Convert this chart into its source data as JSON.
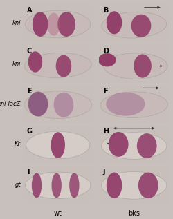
{
  "figsize": [
    2.5,
    3.17
  ],
  "dpi": 100,
  "background_color": "#c8c0bc",
  "panel_layout": {
    "rows": 5,
    "cols": 2,
    "panels": [
      "A",
      "B",
      "C",
      "D",
      "E",
      "F",
      "G",
      "H",
      "I",
      "J"
    ]
  },
  "row_labels": [
    "kni",
    "kni",
    "kni-lacZ",
    "Kr",
    "gt"
  ],
  "row_label_italic": true,
  "col_labels": [
    "wt",
    "bks"
  ],
  "col_label_fontsize": 7,
  "row_label_fontsize": 6,
  "panel_label_fontsize": 7,
  "panel_bg_color": "#c8bfbb",
  "arrow_color": "#333333",
  "embryo_colors": {
    "A": {
      "bg": "#c8bab8",
      "stripe_dark": "#8b3060",
      "stripe_mid": "#b06080"
    },
    "B": {
      "bg": "#c8bab8",
      "stripe_dark": "#8b3060",
      "stripe_mid": "#b06080"
    },
    "C": {
      "bg": "#c8bab8",
      "stripe_dark": "#8b3060",
      "stripe_mid": "#b06080"
    },
    "D": {
      "bg": "#c8bab8",
      "stripe_dark": "#8b3060",
      "stripe_mid": "#b06080"
    },
    "E": {
      "bg": "#c8bab8",
      "stripe_dark": "#7b4070",
      "stripe_mid": "#a07090"
    },
    "F": {
      "bg": "#c8bab8",
      "stripe_dark": "#7b4070",
      "stripe_mid": "#a07090"
    },
    "G": {
      "bg": "#d8d0cc",
      "stripe_dark": "#8b3060",
      "stripe_mid": "#b06080"
    },
    "H": {
      "bg": "#d8d0cc",
      "stripe_dark": "#8b3060",
      "stripe_mid": "#b06080"
    },
    "I": {
      "bg": "#d8d0cc",
      "stripe_dark": "#8b3060",
      "stripe_mid": "#b06080"
    },
    "J": {
      "bg": "#d8d0cc",
      "stripe_dark": "#8b3060",
      "stripe_mid": "#b06080"
    }
  }
}
